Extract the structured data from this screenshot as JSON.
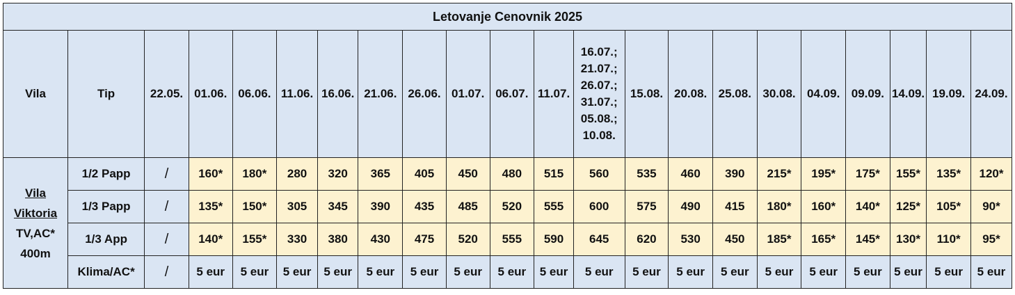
{
  "table": {
    "title": "Letovanje Cenovnik 2025",
    "header": {
      "vila": "Vila",
      "tip": "Tip",
      "dates": [
        "22.05.",
        "01.06.",
        "06.06.",
        "11.06.",
        "16.06.",
        "21.06.",
        "26.06.",
        "01.07.",
        "06.07.",
        "11.07."
      ],
      "multi_date": [
        "16.07.;",
        "21.07.;",
        "26.07.;",
        "31.07.;",
        "05.08.;",
        "10.08."
      ],
      "dates_after": [
        "15.08.",
        "20.08.",
        "25.08.",
        "30.08.",
        "04.09.",
        "09.09.",
        "14.09.",
        "19.09.",
        "24.09."
      ]
    },
    "vila": {
      "name_line1": "Vila",
      "name_line2": "Viktoria",
      "features": "TV,AC*",
      "distance": "400m"
    },
    "rows": [
      {
        "type": "1/2 Papp",
        "first": "/",
        "values": [
          "160*",
          "180*",
          "280",
          "320",
          "365",
          "405",
          "450",
          "480",
          "515",
          "560",
          "535",
          "460",
          "390",
          "215*",
          "195*",
          "175*",
          "155*",
          "135*",
          "120*"
        ]
      },
      {
        "type": "1/3 Papp",
        "first": "/",
        "values": [
          "135*",
          "150*",
          "305",
          "345",
          "390",
          "435",
          "485",
          "520",
          "555",
          "600",
          "575",
          "490",
          "415",
          "180*",
          "160*",
          "140*",
          "125*",
          "105*",
          "90*"
        ]
      },
      {
        "type": "1/3 App",
        "first": "/",
        "values": [
          "140*",
          "155*",
          "330",
          "380",
          "430",
          "475",
          "520",
          "555",
          "590",
          "645",
          "620",
          "530",
          "450",
          "185*",
          "165*",
          "145*",
          "130*",
          "110*",
          "95*"
        ]
      },
      {
        "type": "Klima/AC*",
        "first": "/",
        "values": [
          "5 eur",
          "5 eur",
          "5 eur",
          "5 eur",
          "5 eur",
          "5 eur",
          "5 eur",
          "5 eur",
          "5 eur",
          "5 eur",
          "5 eur",
          "5 eur",
          "5 eur",
          "5 eur",
          "5 eur",
          "5 eur",
          "5 eur",
          "5 eur",
          "5 eur"
        ]
      }
    ],
    "colors": {
      "header_bg": "#dae5f3",
      "price_bg": "#fdf2d0",
      "border": "#222222"
    }
  }
}
